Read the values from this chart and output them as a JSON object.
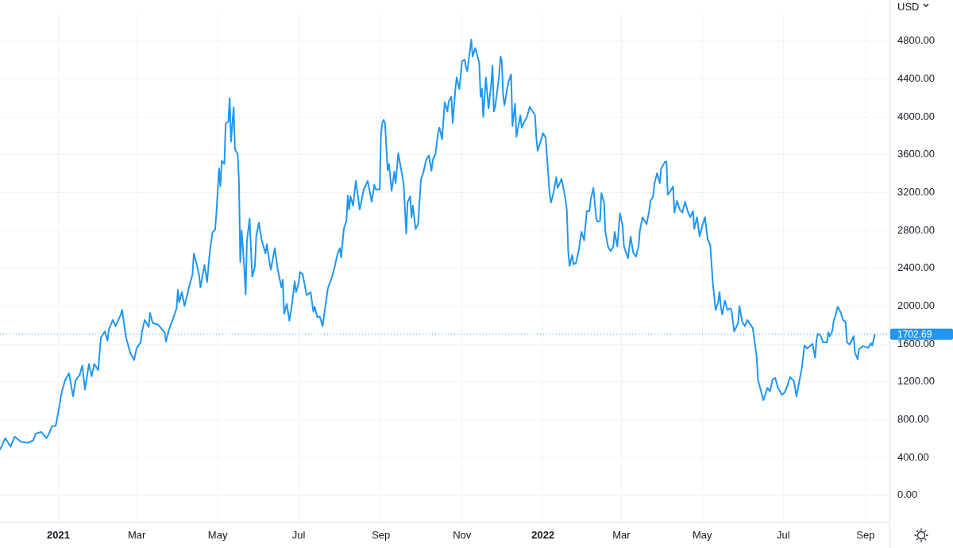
{
  "chart_data": {
    "type": "line",
    "ylabel": "USD",
    "x": [
      "2020-11-18",
      "2020-11-22",
      "2020-11-26",
      "2020-11-29",
      "2020-12-04",
      "2020-12-09",
      "2020-12-13",
      "2020-12-15",
      "2020-12-19",
      "2020-12-23",
      "2020-12-25",
      "2020-12-27",
      "2020-12-30",
      "2021-01-02",
      "2021-01-03",
      "2021-01-06",
      "2021-01-09",
      "2021-01-12",
      "2021-01-14",
      "2021-01-17",
      "2021-01-19",
      "2021-01-21",
      "2021-01-24",
      "2021-01-26",
      "2021-01-28",
      "2021-01-31",
      "2021-02-02",
      "2021-02-05",
      "2021-02-07",
      "2021-02-08",
      "2021-02-11",
      "2021-02-13",
      "2021-02-17",
      "2021-02-18",
      "2021-02-21",
      "2021-02-24",
      "2021-02-27",
      "2021-03-01",
      "2021-03-04",
      "2021-03-05",
      "2021-03-07",
      "2021-03-10",
      "2021-03-11",
      "2021-03-13",
      "2021-03-17",
      "2021-03-22",
      "2021-03-23",
      "2021-03-25",
      "2021-03-28",
      "2021-03-31",
      "2021-04-01",
      "2021-04-02",
      "2021-04-04",
      "2021-04-06",
      "2021-04-09",
      "2021-04-12",
      "2021-04-13",
      "2021-04-15",
      "2021-04-17",
      "2021-04-18",
      "2021-04-21",
      "2021-04-23",
      "2021-04-25",
      "2021-04-27",
      "2021-04-29",
      "2021-04-30",
      "2021-05-02",
      "2021-05-03",
      "2021-05-04",
      "2021-05-06",
      "2021-05-07",
      "2021-05-09",
      "2021-05-10",
      "2021-05-11",
      "2021-05-13",
      "2021-05-14",
      "2021-05-16",
      "2021-05-17",
      "2021-05-18",
      "2021-05-19",
      "2021-05-21",
      "2021-05-22",
      "2021-05-23",
      "2021-05-25",
      "2021-05-27",
      "2021-05-29",
      "2021-05-30",
      "2021-06-01",
      "2021-06-03",
      "2021-06-06",
      "2021-06-07",
      "2021-06-09",
      "2021-06-10",
      "2021-06-13",
      "2021-06-15",
      "2021-06-18",
      "2021-06-19",
      "2021-06-20",
      "2021-06-22",
      "2021-06-24",
      "2021-06-26",
      "2021-06-28",
      "2021-06-29",
      "2021-07-01",
      "2021-07-02",
      "2021-07-04",
      "2021-07-07",
      "2021-07-10",
      "2021-07-12",
      "2021-07-13",
      "2021-07-15",
      "2021-07-17",
      "2021-07-19",
      "2021-07-21",
      "2021-07-23",
      "2021-07-26",
      "2021-07-28",
      "2021-07-30",
      "2021-08-01",
      "2021-08-02",
      "2021-08-04",
      "2021-08-06",
      "2021-08-07",
      "2021-08-08",
      "2021-08-09",
      "2021-08-11",
      "2021-08-13",
      "2021-08-16",
      "2021-08-19",
      "2021-08-22",
      "2021-08-24",
      "2021-08-25",
      "2021-08-27",
      "2021-08-28",
      "2021-08-31",
      "2021-09-01",
      "2021-09-02",
      "2021-09-03",
      "2021-09-04",
      "2021-09-06",
      "2021-09-07",
      "2021-09-09",
      "2021-09-11",
      "2021-09-12",
      "2021-09-14",
      "2021-09-16",
      "2021-09-18",
      "2021-09-20",
      "2021-09-21",
      "2021-09-23",
      "2021-09-24",
      "2021-09-25",
      "2021-09-27",
      "2021-09-29",
      "2021-10-01",
      "2021-10-03",
      "2021-10-05",
      "2021-10-07",
      "2021-10-09",
      "2021-10-10",
      "2021-10-12",
      "2021-10-14",
      "2021-10-15",
      "2021-10-17",
      "2021-10-19",
      "2021-10-21",
      "2021-10-22",
      "2021-10-24",
      "2021-10-25",
      "2021-10-27",
      "2021-10-28",
      "2021-10-30",
      "2021-11-01",
      "2021-11-03",
      "2021-11-04",
      "2021-11-05",
      "2021-11-08",
      "2021-11-09",
      "2021-11-11",
      "2021-11-14",
      "2021-11-15",
      "2021-11-16",
      "2021-11-17",
      "2021-11-19",
      "2021-11-21",
      "2021-11-23",
      "2021-11-24",
      "2021-11-25",
      "2021-11-26",
      "2021-11-29",
      "2021-11-30",
      "2021-12-01",
      "2021-12-02",
      "2021-12-03",
      "2021-12-05",
      "2021-12-06",
      "2021-12-08",
      "2021-12-09",
      "2021-12-11",
      "2021-12-12",
      "2021-12-15",
      "2021-12-16",
      "2021-12-18",
      "2021-12-20",
      "2021-12-22",
      "2021-12-26",
      "2021-12-27",
      "2021-12-28",
      "2021-12-30",
      "2022-01-01",
      "2022-01-03",
      "2022-01-06",
      "2022-01-07",
      "2022-01-09",
      "2022-01-11",
      "2022-01-12",
      "2022-01-14",
      "2022-01-15",
      "2022-01-18",
      "2022-01-19",
      "2022-01-20",
      "2022-01-21",
      "2022-01-23",
      "2022-01-24",
      "2022-01-26",
      "2022-01-28",
      "2022-01-30",
      "2022-02-01",
      "2022-02-03",
      "2022-02-05",
      "2022-02-06",
      "2022-02-08",
      "2022-02-10",
      "2022-02-11",
      "2022-02-13",
      "2022-02-14",
      "2022-02-16",
      "2022-02-17",
      "2022-02-19",
      "2022-02-21",
      "2022-02-23",
      "2022-02-24",
      "2022-02-26",
      "2022-02-28",
      "2022-03-02",
      "2022-03-03",
      "2022-03-06",
      "2022-03-08",
      "2022-03-10",
      "2022-03-12",
      "2022-03-14",
      "2022-03-15",
      "2022-03-17",
      "2022-03-20",
      "2022-03-22",
      "2022-03-23",
      "2022-03-25",
      "2022-03-26",
      "2022-03-28",
      "2022-03-30",
      "2022-03-31",
      "2022-04-03",
      "2022-04-04",
      "2022-04-05",
      "2022-04-07",
      "2022-04-09",
      "2022-04-10",
      "2022-04-12",
      "2022-04-14",
      "2022-04-16",
      "2022-04-18",
      "2022-04-20",
      "2022-04-22",
      "2022-04-24",
      "2022-04-25",
      "2022-04-27",
      "2022-04-29",
      "2022-05-01",
      "2022-05-03",
      "2022-05-05",
      "2022-05-07",
      "2022-05-09",
      "2022-05-11",
      "2022-05-13",
      "2022-05-14",
      "2022-05-15",
      "2022-05-16",
      "2022-05-18",
      "2022-05-20",
      "2022-05-22",
      "2022-05-23",
      "2022-05-25",
      "2022-05-28",
      "2022-05-29",
      "2022-05-31",
      "2022-06-02",
      "2022-06-04",
      "2022-06-07",
      "2022-06-08",
      "2022-06-11",
      "2022-06-12",
      "2022-06-15",
      "2022-06-16",
      "2022-06-19",
      "2022-06-21",
      "2022-06-23",
      "2022-06-25",
      "2022-06-27",
      "2022-06-30",
      "2022-07-02",
      "2022-07-04",
      "2022-07-06",
      "2022-07-09",
      "2022-07-11",
      "2022-07-13",
      "2022-07-15",
      "2022-07-17",
      "2022-07-19",
      "2022-07-23",
      "2022-07-25",
      "2022-07-26",
      "2022-07-27",
      "2022-07-29",
      "2022-07-31",
      "2022-08-03",
      "2022-08-04",
      "2022-08-05",
      "2022-08-07",
      "2022-08-08",
      "2022-08-09",
      "2022-08-11",
      "2022-08-13",
      "2022-08-15",
      "2022-08-17",
      "2022-08-18",
      "2022-08-20",
      "2022-08-23",
      "2022-08-24",
      "2022-08-26",
      "2022-08-27",
      "2022-08-30",
      "2022-09-03",
      "2022-09-05",
      "2022-09-06",
      "2022-09-08"
    ],
    "series": [
      {
        "color": "#2196f3",
        "values": [
          482,
          604,
          514,
          620,
          563,
          555,
          580,
          653,
          669,
          604,
          653,
          727,
          735,
          963,
          1061,
          1216,
          1290,
          1045,
          1216,
          1273,
          1371,
          1118,
          1388,
          1257,
          1388,
          1322,
          1665,
          1731,
          1633,
          1755,
          1853,
          1788,
          1910,
          1959,
          1665,
          1510,
          1429,
          1559,
          1616,
          1731,
          1853,
          1780,
          1927,
          1820,
          1804,
          1722,
          1624,
          1739,
          1853,
          1976,
          2171,
          2041,
          2147,
          2000,
          2180,
          2335,
          2555,
          2449,
          2327,
          2196,
          2433,
          2253,
          2571,
          2776,
          2808,
          2980,
          3453,
          3265,
          3535,
          3502,
          3927,
          3951,
          4196,
          3739,
          4098,
          3657,
          3608,
          3314,
          2465,
          2800,
          2400,
          2122,
          2686,
          2922,
          2310,
          2416,
          2735,
          2882,
          2702,
          2555,
          2653,
          2465,
          2384,
          2612,
          2400,
          2196,
          2278,
          1918,
          2024,
          1845,
          2024,
          2261,
          2147,
          2245,
          2359,
          2335,
          2114,
          2147,
          1943,
          1992,
          1886,
          1886,
          1788,
          1992,
          2188,
          2302,
          2408,
          2539,
          2612,
          2514,
          2816,
          2906,
          3167,
          3020,
          3159,
          3061,
          3322,
          3020,
          3233,
          3322,
          3176,
          3102,
          3282,
          3233,
          3233,
          3829,
          3935,
          3967,
          3935,
          3437,
          3502,
          3216,
          3420,
          3298,
          3616,
          3453,
          3298,
          2767,
          3094,
          3159,
          2939,
          3061,
          2816,
          2865,
          3331,
          3420,
          3543,
          3592,
          3429,
          3543,
          3608,
          3829,
          3886,
          3763,
          4155,
          4057,
          4163,
          4212,
          3935,
          4294,
          4416,
          4294,
          4588,
          4604,
          4522,
          4482,
          4816,
          4637,
          4727,
          4571,
          4212,
          4294,
          4000,
          4416,
          4090,
          4343,
          4539,
          4057,
          4106,
          4433,
          4637,
          4588,
          4229,
          4122,
          4294,
          4367,
          4449,
          3902,
          4139,
          3788,
          4016,
          3886,
          3950,
          4000,
          4106,
          4016,
          3780,
          3641,
          3731,
          3829,
          3780,
          3192,
          3094,
          3200,
          3363,
          3249,
          3310,
          3347,
          3127,
          3004,
          2580,
          2424,
          2539,
          2441,
          2460,
          2596,
          2784,
          2694,
          3004,
          3004,
          3127,
          3249,
          2939,
          2890,
          2900,
          3192,
          3094,
          2784,
          2629,
          2580,
          2629,
          2784,
          2629,
          2980,
          2849,
          2629,
          2506,
          2735,
          2563,
          2522,
          2629,
          2800,
          2939,
          2865,
          3004,
          3110,
          3159,
          3298,
          3404,
          3298,
          3453,
          3527,
          3527,
          3176,
          3216,
          3265,
          2988,
          3110,
          3020,
          2988,
          3102,
          3004,
          2939,
          3004,
          2816,
          2939,
          2735,
          2849,
          2939,
          2710,
          2645,
          2237,
          1959,
          2041,
          2147,
          1992,
          1910,
          2057,
          1960,
          1976,
          1960,
          1731,
          1820,
          2000,
          1837,
          1788,
          1853,
          1788,
          1771,
          1461,
          1216,
          1061,
          1004,
          1135,
          1100,
          1224,
          1240,
          1135,
          1061,
          1086,
          1151,
          1249,
          1208,
          1045,
          1200,
          1347,
          1584,
          1551,
          1600,
          1453,
          1633,
          1706,
          1690,
          1616,
          1616,
          1722,
          1680,
          1739,
          1845,
          1886,
          1992,
          1943,
          1853,
          1830,
          1616,
          1592,
          1682,
          1510,
          1437,
          1543,
          1576,
          1559,
          1608,
          1580,
          1702.69
        ]
      }
    ],
    "xlim": [
      "2020-11-18",
      "2022-09-19"
    ],
    "xticks": [
      {
        "value": "2021-01-01",
        "label": "2021"
      },
      {
        "value": "2021-03-01",
        "label": "Mar"
      },
      {
        "value": "2021-05-01",
        "label": "May"
      },
      {
        "value": "2021-07-01",
        "label": "Jul"
      },
      {
        "value": "2021-09-01",
        "label": "Sep"
      },
      {
        "value": "2021-11-01",
        "label": "Nov"
      },
      {
        "value": "2022-01-01",
        "label": "2022"
      },
      {
        "value": "2022-03-01",
        "label": "Mar"
      },
      {
        "value": "2022-05-01",
        "label": "May"
      },
      {
        "value": "2022-07-01",
        "label": "Jul"
      },
      {
        "value": "2022-09-01",
        "label": "Sep"
      }
    ],
    "ylim": [
      -280,
      5085
    ],
    "yticks": [
      {
        "value": 0,
        "label": "0.00"
      },
      {
        "value": 400,
        "label": "400.00"
      },
      {
        "value": 800,
        "label": "800.00"
      },
      {
        "value": 1200,
        "label": "1200.00"
      },
      {
        "value": 1600,
        "label": "1600.00"
      },
      {
        "value": 2000,
        "label": "2000.00"
      },
      {
        "value": 2400,
        "label": "2400.00"
      },
      {
        "value": 2800,
        "label": "2800.00"
      },
      {
        "value": 3200,
        "label": "3200.00"
      },
      {
        "value": 3600,
        "label": "3600.00"
      },
      {
        "value": 4000,
        "label": "4000.00"
      },
      {
        "value": 4400,
        "label": "4400.00"
      },
      {
        "value": 4800,
        "label": "4800.00"
      }
    ],
    "ref_lines": [
      {
        "axis": "y",
        "value": 1702.69,
        "label": "1702.69",
        "color": "#2196f3",
        "line_style": "dotted"
      }
    ],
    "grid": true,
    "line_style": "solid"
  }
}
